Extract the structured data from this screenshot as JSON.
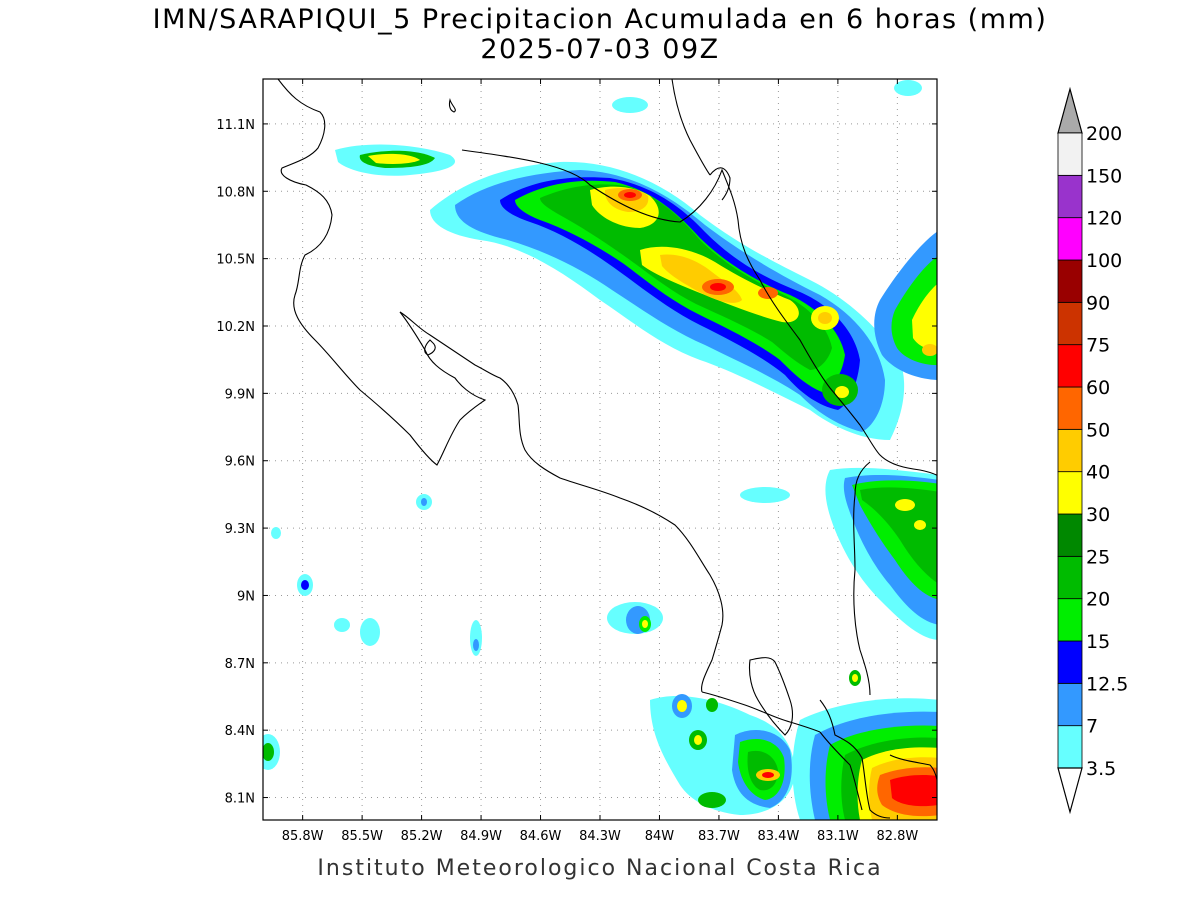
{
  "title": {
    "line1": "IMN/SARAPIQUI_5 Precipitacion Acumulada en 6 horas (mm)",
    "line2": "2025-07-03 09Z"
  },
  "footer": "Instituto Meteorologico Nacional Costa Rica",
  "map": {
    "lon_range": [
      -86.0,
      -82.6
    ],
    "lat_range": [
      8.0,
      11.3
    ],
    "lon_ticks": [
      "85.8W",
      "85.5W",
      "85.2W",
      "84.9W",
      "84.6W",
      "84.3W",
      "84W",
      "83.7W",
      "83.4W",
      "83.1W",
      "82.8W"
    ],
    "lon_tick_values": [
      -85.8,
      -85.5,
      -85.2,
      -84.9,
      -84.6,
      -84.3,
      -84.0,
      -83.7,
      -83.4,
      -83.1,
      -82.8
    ],
    "lat_ticks": [
      "11.1N",
      "10.8N",
      "10.5N",
      "10.2N",
      "9.9N",
      "9.6N",
      "9.3N",
      "9N",
      "8.7N",
      "8.4N",
      "8.1N"
    ],
    "lat_tick_values": [
      11.1,
      10.8,
      10.5,
      10.2,
      9.9,
      9.6,
      9.3,
      9.0,
      8.7,
      8.4,
      8.1
    ],
    "grid": "dotted"
  },
  "colorbar": {
    "labels": [
      "3.5",
      "7",
      "12.5",
      "15",
      "20",
      "25",
      "30",
      "40",
      "50",
      "60",
      "75",
      "90",
      "100",
      "120",
      "150",
      "200"
    ],
    "colors": [
      "#66ffff",
      "#3399ff",
      "#0000ff",
      "#00ee00",
      "#00bb00",
      "#008800",
      "#ffff00",
      "#ffcc00",
      "#ff6600",
      "#ff0000",
      "#cc3300",
      "#990000",
      "#ff00ff",
      "#9933cc",
      "#f2f2f2"
    ],
    "top_arrow_color": "#aaaaaa",
    "bottom_arrow_color": "#ffffff"
  }
}
